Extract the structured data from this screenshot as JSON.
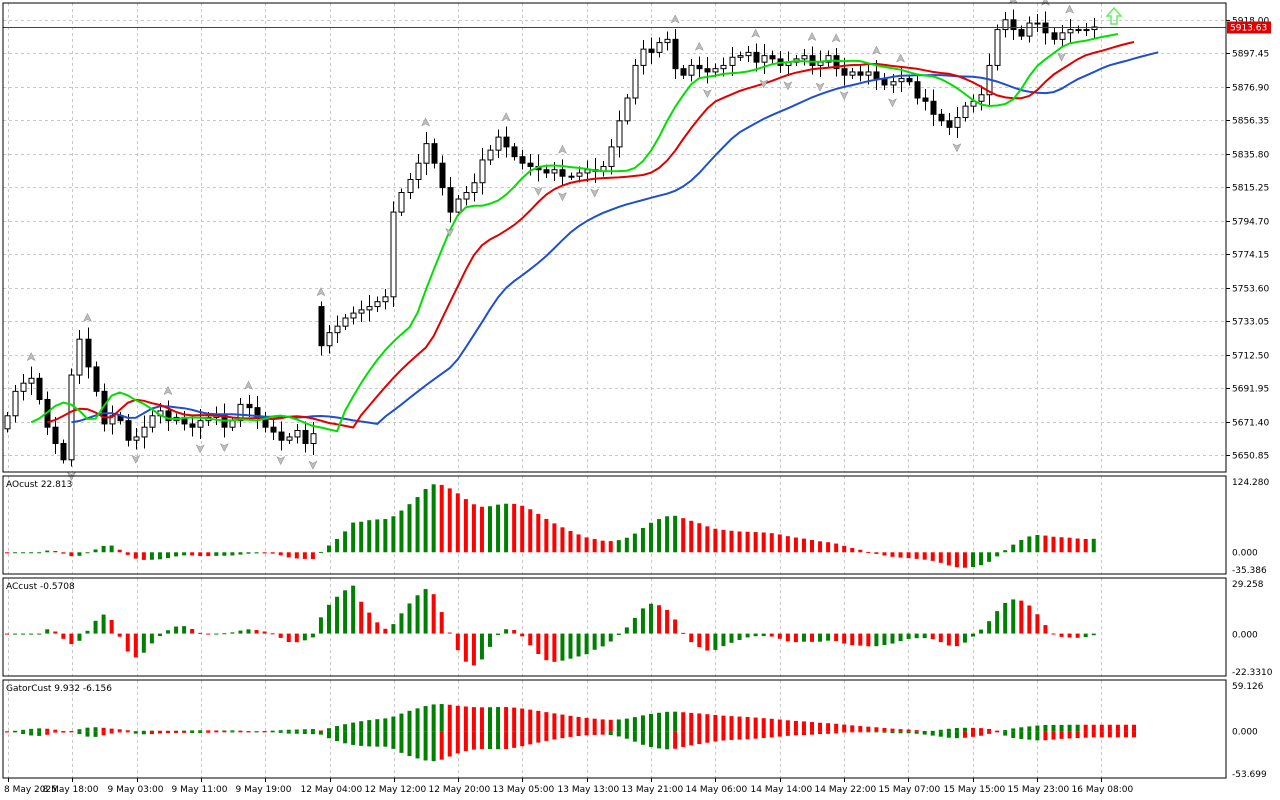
{
  "chart_data": [
    {
      "type": "candlestick",
      "panel": "main",
      "symbol": "",
      "timeframe": "H1",
      "current_price": "5913.63",
      "current_price_color": "#e00000",
      "colors": {
        "up_body": "#ffffff",
        "down_body": "#000000",
        "wick": "#000000",
        "jaw": "#1e4fd0",
        "teeth": "#e00000",
        "lips": "#00e000",
        "fractal": "#bdbdbd",
        "arrow": "#66ee66"
      },
      "y_ticks": [
        "5918.00",
        "5897.45",
        "5876.90",
        "5856.35",
        "5835.80",
        "5815.25",
        "5794.70",
        "5774.15",
        "5753.60",
        "5733.05",
        "5712.50",
        "5691.95",
        "5671.40",
        "5650.85"
      ],
      "ylim": [
        5640.5,
        5928.3
      ],
      "x_ticks": [
        "8 May 2025",
        "8 May 18:00",
        "9 May 03:00",
        "9 May 11:00",
        "9 May 19:00",
        "12 May 04:00",
        "12 May 12:00",
        "12 May 20:00",
        "13 May 05:00",
        "13 May 13:00",
        "13 May 21:00",
        "14 May 06:00",
        "14 May 14:00",
        "14 May 22:00",
        "15 May 07:00",
        "15 May 15:00",
        "15 May 23:00",
        "16 May 08:00"
      ],
      "closes": [
        5675,
        5690,
        5695,
        5698,
        5685,
        5668,
        5658,
        5648,
        5700,
        5722,
        5705,
        5690,
        5670,
        5675,
        5672,
        5660,
        5662,
        5668,
        5675,
        5678,
        5672,
        5674,
        5670,
        5668,
        5672,
        5674,
        5676,
        5668,
        5672,
        5682,
        5680,
        5674,
        5668,
        5665,
        5660,
        5662,
        5666,
        5658,
        5664,
        5718,
        5726,
        5730,
        5735,
        5738,
        5740,
        5742,
        5745,
        5748,
        5800,
        5812,
        5820,
        5830,
        5842,
        5830,
        5815,
        5800,
        5808,
        5812,
        5818,
        5832,
        5838,
        5846,
        5840,
        5834,
        5830,
        5828,
        5826,
        5824,
        5826,
        5822,
        5822,
        5824,
        5826,
        5825,
        5828,
        5840,
        5856,
        5870,
        5890,
        5900,
        5898,
        5904,
        5906,
        5888,
        5884,
        5890,
        5888,
        5886,
        5888,
        5890,
        5895,
        5896,
        5898,
        5892,
        5896,
        5894,
        5890,
        5892,
        5894,
        5896,
        5890,
        5892,
        5896,
        5888,
        5884,
        5886,
        5884,
        5886,
        5882,
        5878,
        5880,
        5882,
        5880,
        5870,
        5868,
        5860,
        5856,
        5852,
        5858,
        5865,
        5868,
        5872,
        5890,
        5912,
        5918,
        5912,
        5908,
        5916,
        5916,
        5910,
        5906,
        5910,
        5912,
        5912,
        5912,
        5913.6
      ],
      "ao_value_label": "AOcust 22.813",
      "ao_ylim": [
        -35.386,
        124.28
      ],
      "ao_ticks": [
        "124.280",
        "0.000",
        "-35.386"
      ],
      "ac_value_label": "ACcust -0.5708",
      "ac_ylim": [
        -22.331,
        29.258
      ],
      "ac_ticks": [
        "29.258",
        "0.000",
        "-22.3310"
      ],
      "gator_value_label": "GatorCust 9.932 -6.156",
      "gator_ylim": [
        -53.699,
        59.126
      ],
      "gator_ticks": [
        "59.126",
        "0.000",
        "-53.699"
      ],
      "osc_colors": {
        "up": "#008000",
        "down": "#ff0000"
      }
    }
  ]
}
